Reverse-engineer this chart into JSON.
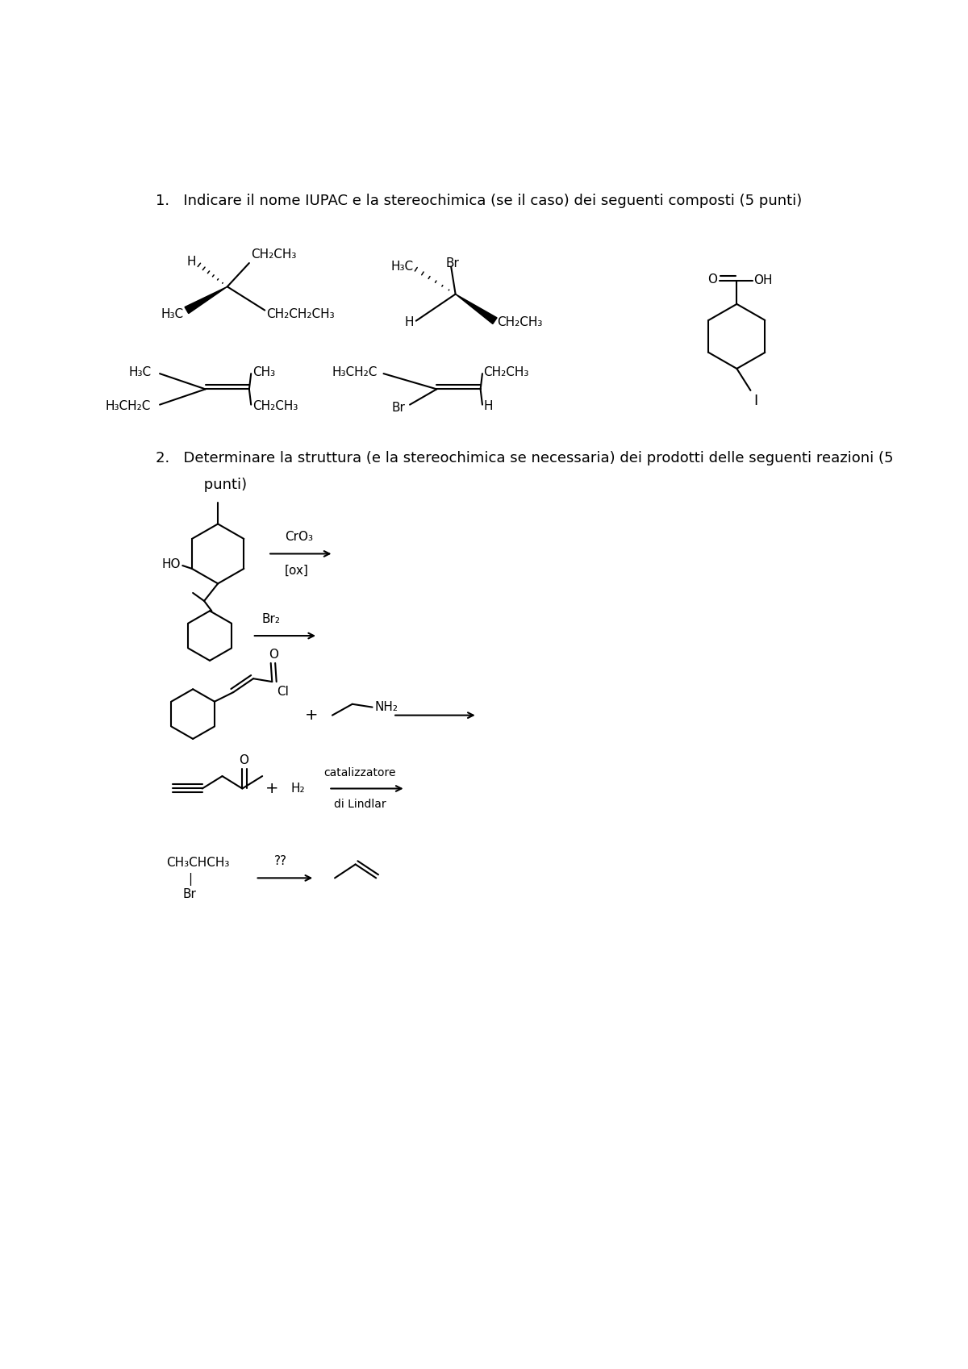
{
  "background": "#ffffff",
  "text_color": "#000000",
  "font_size": 13,
  "title1": "1.   Indicare il nome IUPAC e la stereochimica (se il caso) dei seguenti composti (5 punti)",
  "title2": "2.   Determinare la struttura (e la stereochimica se necessaria) dei prodotti delle seguenti reazioni (5",
  "title2b": "     punti)"
}
